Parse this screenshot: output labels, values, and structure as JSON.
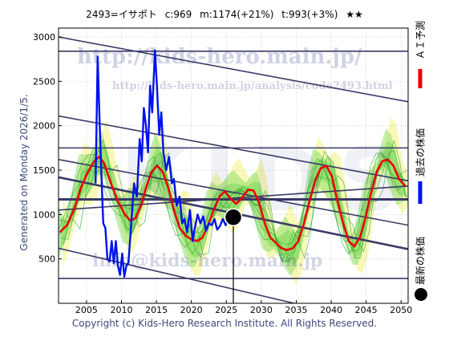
{
  "header": {
    "ticker": "2493=イサポト",
    "current": "c:969",
    "mid": "m:1174(+21%)",
    "target": "t:993(+3%)",
    "stars": "★★"
  },
  "footer": {
    "copyright": "Copyright (c) Kids-Hero Research Institute. All Rights Reserved."
  },
  "side": {
    "generated": "Generated on Monday 2026/1/5."
  },
  "legend": {
    "ai": "ＡＩ予測",
    "past": "過去の株価",
    "latest": "最新の株価"
  },
  "watermarks": {
    "site": "http://kids-hero.main.jp/",
    "analysis": "http://kids-hero.main.jp/analysis/code2493.html",
    "mail": "info@kids-hero.main.jp",
    "big": "KIDS"
  },
  "colors": {
    "past": "#0011ee",
    "ai": "#ee0000",
    "band_green": "#7ad85a",
    "band_yellow": "#f6f7a6",
    "trend": "#3b3b66",
    "marker": "#000000",
    "text": "#3d4a7a"
  },
  "chart_data": {
    "type": "line",
    "xlim": [
      2001,
      2051
    ],
    "ylim": [
      0,
      3100
    ],
    "x_ticks": [
      2005,
      2010,
      2015,
      2020,
      2025,
      2030,
      2035,
      2040,
      2045,
      2050
    ],
    "y_ticks": [
      500,
      1000,
      1500,
      2000,
      2500,
      3000
    ],
    "grid": true,
    "series": [
      {
        "name": "過去の株価",
        "points": [
          [
            2006.3,
            1350
          ],
          [
            2006.6,
            2780
          ],
          [
            2006.9,
            2000
          ],
          [
            2007.2,
            1300
          ],
          [
            2007.4,
            900
          ],
          [
            2007.7,
            850
          ],
          [
            2008.0,
            500
          ],
          [
            2008.3,
            470
          ],
          [
            2008.6,
            700
          ],
          [
            2008.9,
            450
          ],
          [
            2009.2,
            700
          ],
          [
            2009.5,
            420
          ],
          [
            2009.8,
            320
          ],
          [
            2010.1,
            560
          ],
          [
            2010.4,
            300
          ],
          [
            2010.7,
            420
          ],
          [
            2011.0,
            460
          ],
          [
            2011.4,
            900
          ],
          [
            2011.8,
            1350
          ],
          [
            2012.2,
            1200
          ],
          [
            2012.6,
            1850
          ],
          [
            2012.9,
            1600
          ],
          [
            2013.2,
            2200
          ],
          [
            2013.5,
            2000
          ],
          [
            2013.8,
            1700
          ],
          [
            2014.1,
            2450
          ],
          [
            2014.4,
            2150
          ],
          [
            2014.8,
            2850
          ],
          [
            2015.1,
            2400
          ],
          [
            2015.4,
            1900
          ],
          [
            2015.7,
            2150
          ],
          [
            2016.0,
            1700
          ],
          [
            2016.4,
            1500
          ],
          [
            2016.8,
            1650
          ],
          [
            2017.2,
            1350
          ],
          [
            2017.5,
            1400
          ],
          [
            2017.9,
            1100
          ],
          [
            2018.3,
            1200
          ],
          [
            2018.7,
            900
          ],
          [
            2019.0,
            950
          ],
          [
            2019.4,
            800
          ],
          [
            2019.8,
            1050
          ],
          [
            2020.2,
            700
          ],
          [
            2020.5,
            850
          ],
          [
            2020.9,
            1000
          ],
          [
            2021.3,
            900
          ],
          [
            2021.7,
            980
          ],
          [
            2022.1,
            820
          ],
          [
            2022.5,
            900
          ],
          [
            2022.9,
            880
          ],
          [
            2023.3,
            950
          ],
          [
            2023.7,
            830
          ],
          [
            2024.1,
            870
          ],
          [
            2024.5,
            950
          ],
          [
            2024.9,
            880
          ],
          [
            2025.3,
            960
          ],
          [
            2025.8,
            969
          ]
        ]
      },
      {
        "name": "ＡＩ予測",
        "points": [
          [
            2001.2,
            800
          ],
          [
            2002.2,
            880
          ],
          [
            2003.2,
            1050
          ],
          [
            2004.2,
            1300
          ],
          [
            2005.2,
            1480
          ],
          [
            2006.1,
            1600
          ],
          [
            2006.8,
            1650
          ],
          [
            2007.5,
            1580
          ],
          [
            2008.5,
            1350
          ],
          [
            2009.5,
            1150
          ],
          [
            2010.5,
            1000
          ],
          [
            2011.3,
            930
          ],
          [
            2012.0,
            960
          ],
          [
            2012.8,
            1100
          ],
          [
            2013.5,
            1300
          ],
          [
            2014.3,
            1480
          ],
          [
            2015.1,
            1550
          ],
          [
            2015.9,
            1480
          ],
          [
            2016.7,
            1300
          ],
          [
            2017.5,
            1050
          ],
          [
            2018.3,
            850
          ],
          [
            2019.2,
            760
          ],
          [
            2020.0,
            720
          ],
          [
            2020.8,
            700
          ],
          [
            2021.6,
            740
          ],
          [
            2022.4,
            880
          ],
          [
            2023.2,
            1050
          ],
          [
            2024.0,
            1200
          ],
          [
            2024.8,
            1260
          ],
          [
            2025.6,
            1180
          ],
          [
            2026.4,
            1120
          ],
          [
            2027.2,
            1180
          ],
          [
            2028.1,
            1280
          ],
          [
            2028.9,
            1270
          ],
          [
            2029.7,
            1130
          ],
          [
            2030.5,
            900
          ],
          [
            2031.3,
            740
          ],
          [
            2032.1,
            680
          ],
          [
            2032.9,
            620
          ],
          [
            2033.7,
            600
          ],
          [
            2034.5,
            620
          ],
          [
            2035.3,
            700
          ],
          [
            2036.1,
            900
          ],
          [
            2036.9,
            1150
          ],
          [
            2037.7,
            1380
          ],
          [
            2038.5,
            1520
          ],
          [
            2039.3,
            1550
          ],
          [
            2040.1,
            1430
          ],
          [
            2040.9,
            1150
          ],
          [
            2041.7,
            900
          ],
          [
            2042.5,
            700
          ],
          [
            2043.3,
            640
          ],
          [
            2044.1,
            740
          ],
          [
            2044.9,
            960
          ],
          [
            2045.7,
            1240
          ],
          [
            2046.5,
            1480
          ],
          [
            2047.3,
            1600
          ],
          [
            2048.1,
            1620
          ],
          [
            2048.9,
            1550
          ],
          [
            2049.7,
            1400
          ],
          [
            2050.6,
            1320
          ]
        ]
      }
    ],
    "latest": {
      "x": 2026.0,
      "y": 969
    },
    "horizontal_lines": [
      280,
      1170,
      1750,
      2840
    ],
    "trend_lines": [
      {
        "from": [
          2001,
          3000
        ],
        "to": [
          2051,
          2270
        ]
      },
      {
        "from": [
          2001,
          2110
        ],
        "to": [
          2051,
          1380
        ]
      },
      {
        "from": [
          2001,
          1420
        ],
        "to": [
          2051,
          610
        ]
      },
      {
        "from": [
          2001,
          1620
        ],
        "to": [
          2051,
          880
        ]
      },
      {
        "from": [
          2001,
          1050
        ],
        "to": [
          2051,
          1320
        ]
      },
      {
        "from": [
          2001,
          620
        ],
        "to": [
          2051,
          -300
        ]
      }
    ]
  }
}
